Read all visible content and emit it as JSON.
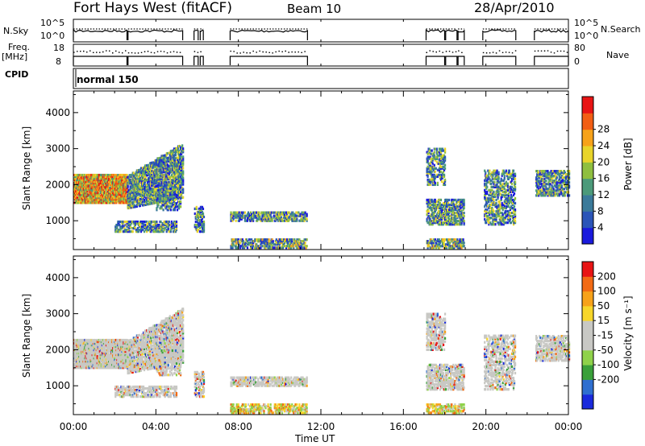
{
  "header": {
    "station": "Fort Hays West (fitACF)",
    "beam": "Beam 10",
    "date": "28/Apr/2010"
  },
  "aux_labels": {
    "nsky": "N.Sky",
    "nsky_top": "10^5",
    "nsky_bottom": "10^0",
    "freq": "Freq.",
    "freq_unit": "[MHz]",
    "freq_top": "18",
    "freq_bottom": "8",
    "cpid": "CPID",
    "cpid_value": "normal 150",
    "nsearch": "N.Search",
    "nsearch_top": "10^5",
    "nsearch_bottom": "10^0",
    "nave": "Nave",
    "nave_top": "80",
    "nave_bottom": "0"
  },
  "chart_data": [
    {
      "type": "heatmap",
      "name": "power",
      "ylabel": "Slant Range [km]",
      "ylim": [
        200,
        4600
      ],
      "yticks": [
        "1000",
        "2000",
        "3000",
        "4000"
      ],
      "colorbar_label": "Power [dB]",
      "colorbar_ticks": [
        "4",
        "8",
        "12",
        "16",
        "20",
        "24",
        "28"
      ],
      "colors": [
        "#1a1adc",
        "#2b55b8",
        "#3b7a9a",
        "#4c9a7a",
        "#8fbf3f",
        "#e8d42a",
        "#f7a21a",
        "#f25e14",
        "#e81414"
      ]
    },
    {
      "type": "heatmap",
      "name": "velocity",
      "ylabel": "Slant Range [km]",
      "ylim": [
        200,
        4600
      ],
      "yticks": [
        "1000",
        "2000",
        "3000",
        "4000"
      ],
      "colorbar_label": "Velocity [m s⁻¹]",
      "colorbar_ticks": [
        "200",
        "100",
        "50",
        "15",
        "-15",
        "-50",
        "-100",
        "-200"
      ],
      "colors": [
        "#1a2adc",
        "#2f6fd0",
        "#3aa03a",
        "#8fd24a",
        "#c8c8c4",
        "#c8c8c4",
        "#f7d62a",
        "#f7a21a",
        "#f26a14",
        "#e81414"
      ]
    }
  ],
  "time_axis": {
    "xlabel": "Time UT",
    "ticks": [
      "00:00",
      "04:00",
      "08:00",
      "12:00",
      "16:00",
      "20:00",
      "00:00"
    ],
    "xlim": [
      0,
      24
    ]
  },
  "operating_intervals_hours": [
    [
      0.0,
      2.6
    ],
    [
      2.65,
      5.3
    ],
    [
      5.85,
      6.05
    ],
    [
      6.15,
      6.3
    ],
    [
      7.6,
      11.35
    ],
    [
      17.1,
      18.0
    ],
    [
      18.05,
      18.6
    ],
    [
      18.65,
      18.95
    ],
    [
      19.85,
      21.45
    ],
    [
      22.35,
      24.0
    ]
  ]
}
